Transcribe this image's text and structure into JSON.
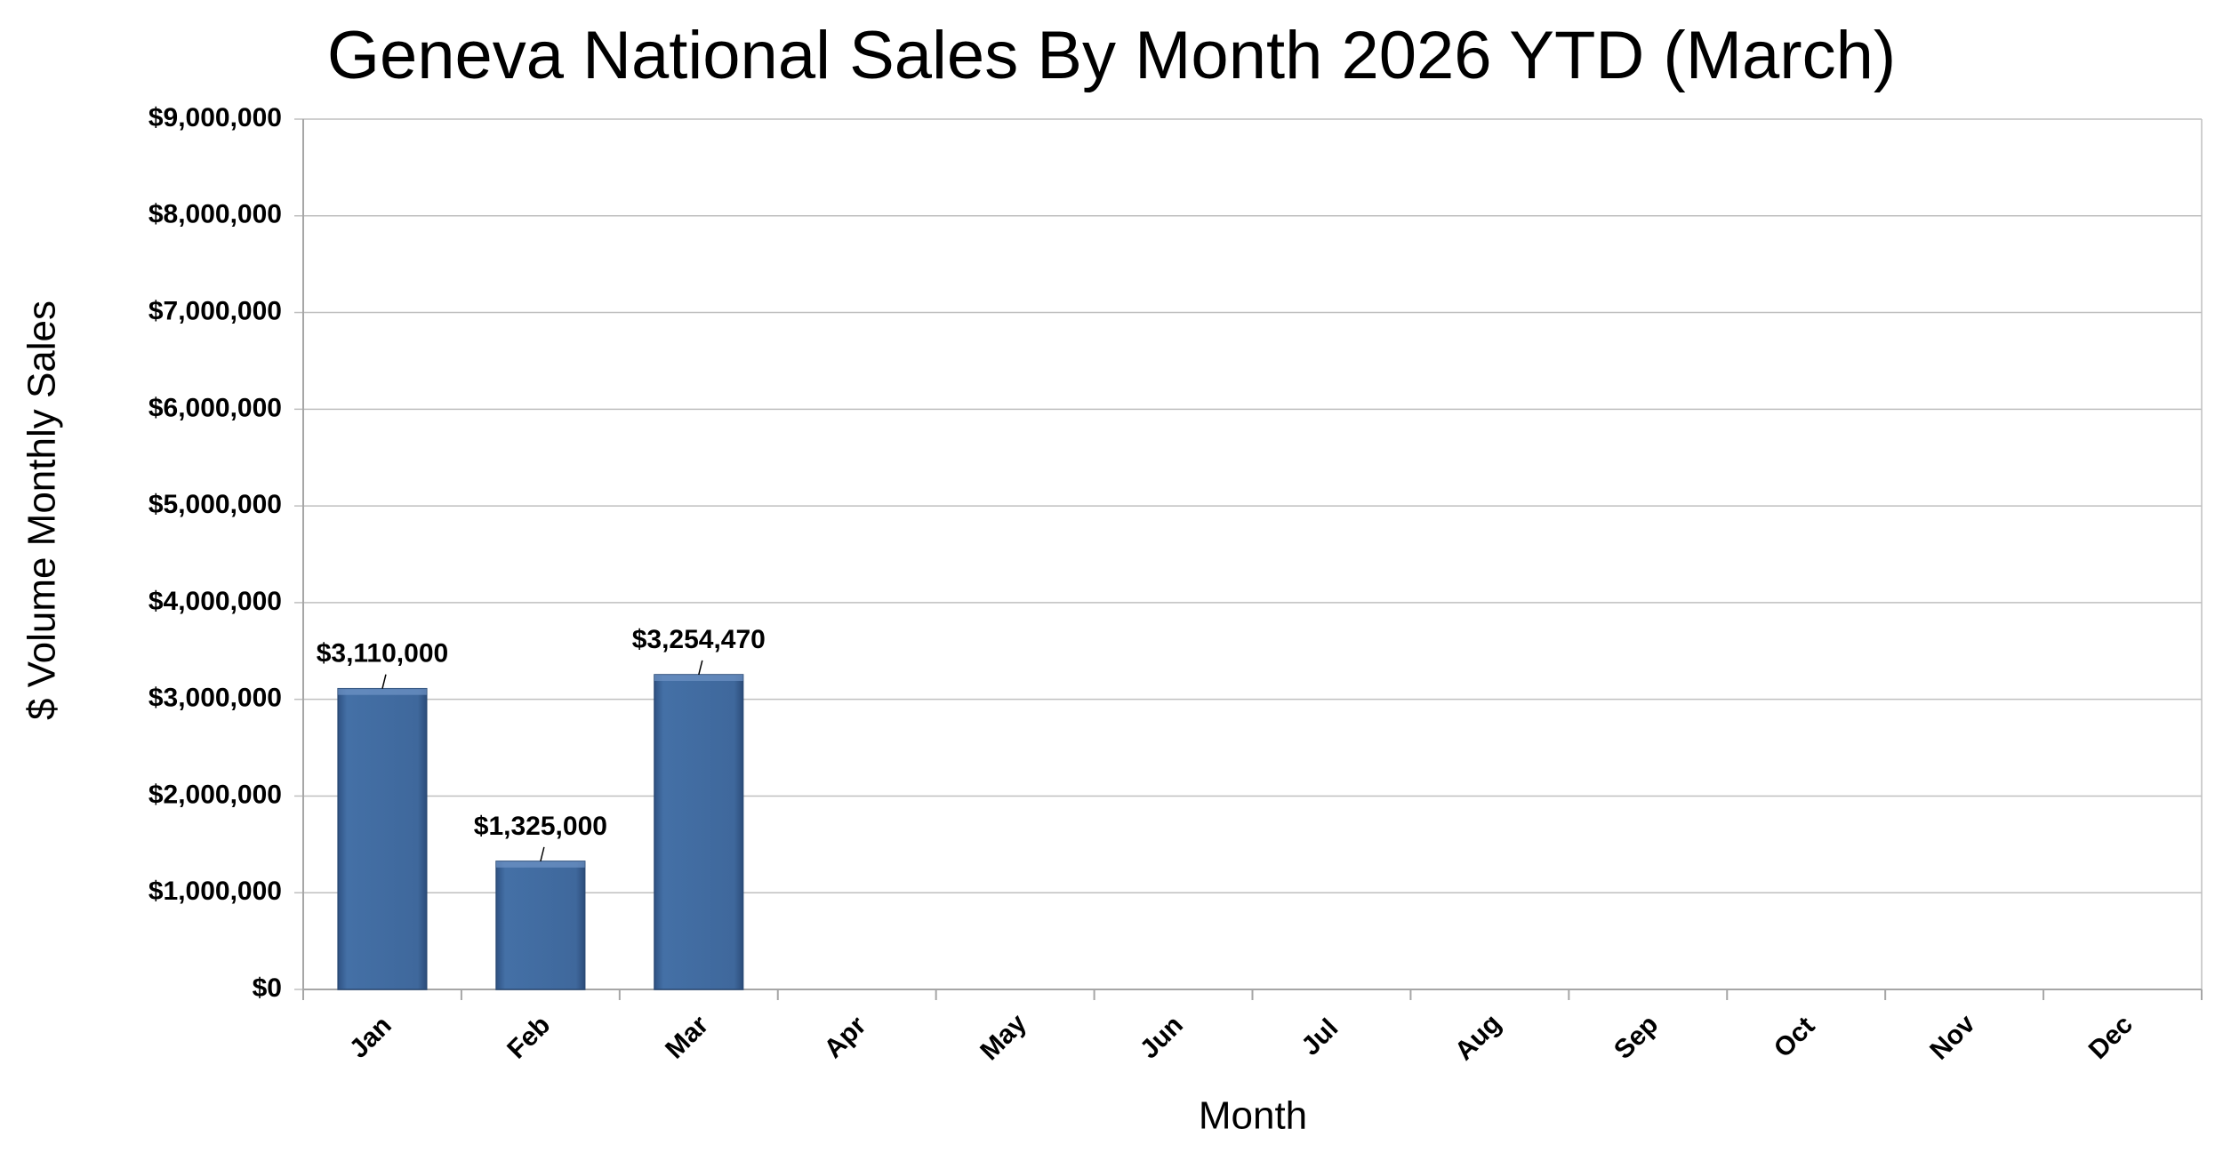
{
  "chart_data": {
    "type": "bar",
    "title": "Geneva National Sales By Month 2026 YTD (March)",
    "x_label": "Month",
    "y_label": "$ Volume Monthly Sales",
    "categories": [
      "Jan",
      "Feb",
      "Mar",
      "Apr",
      "May",
      "Jun",
      "Jul",
      "Aug",
      "Sep",
      "Oct",
      "Nov",
      "Dec"
    ],
    "values": [
      3110000,
      1325000,
      3254470,
      null,
      null,
      null,
      null,
      null,
      null,
      null,
      null,
      null
    ],
    "value_labels": [
      "$3,110,000",
      "$1,325,000",
      "$3,254,470",
      null,
      null,
      null,
      null,
      null,
      null,
      null,
      null,
      null
    ],
    "color": "#3f689c",
    "ylim": [
      0,
      9000000
    ],
    "yticks": [
      {
        "value": 0,
        "label": "$0"
      },
      {
        "value": 1000000,
        "label": "$1,000,000"
      },
      {
        "value": 2000000,
        "label": "$2,000,000"
      },
      {
        "value": 3000000,
        "label": "$3,000,000"
      },
      {
        "value": 4000000,
        "label": "$4,000,000"
      },
      {
        "value": 5000000,
        "label": "$5,000,000"
      },
      {
        "value": 6000000,
        "label": "$6,000,000"
      },
      {
        "value": 7000000,
        "label": "$7,000,000"
      },
      {
        "value": 8000000,
        "label": "$8,000,000"
      },
      {
        "value": 9000000,
        "label": "$9,000,000"
      }
    ],
    "grid": true
  }
}
